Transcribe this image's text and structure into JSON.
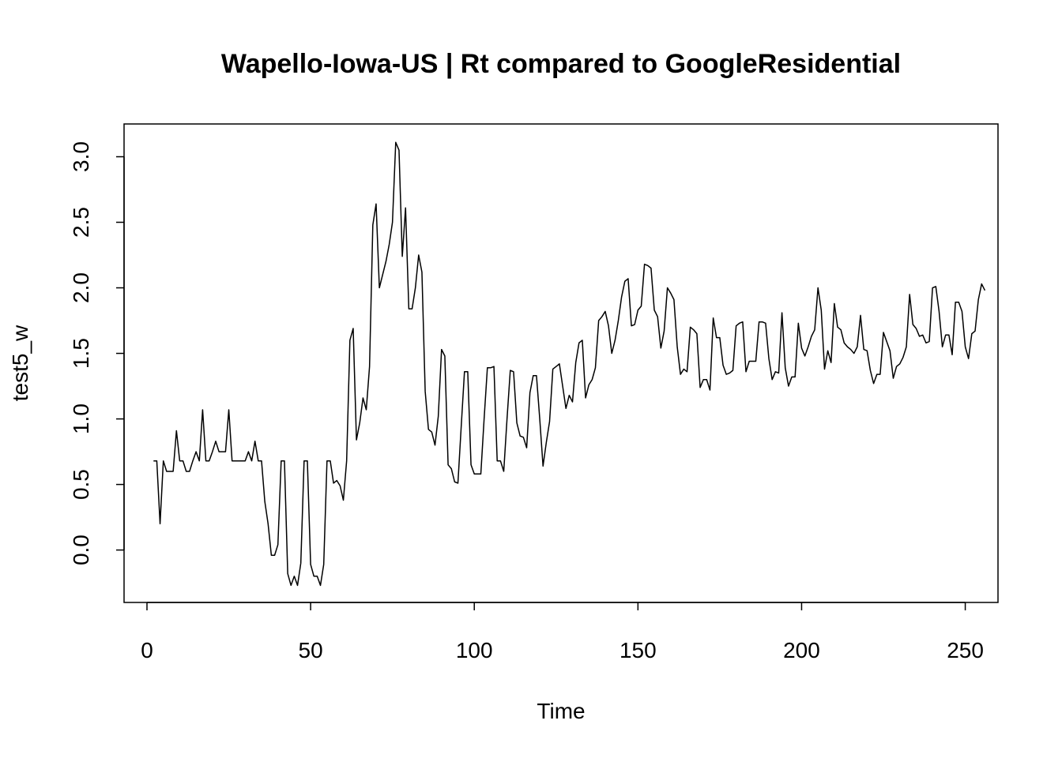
{
  "chart_data": {
    "type": "line",
    "title": "Wapello-Iowa-US | Rt compared to GoogleResidential",
    "xlabel": "Time",
    "ylabel": "test5_w",
    "xlim": [
      -7,
      260
    ],
    "ylim": [
      -0.4,
      3.25
    ],
    "xticks": [
      0,
      50,
      100,
      150,
      200,
      250
    ],
    "yticks": [
      0.0,
      0.5,
      1.0,
      1.5,
      2.0,
      2.5,
      3.0
    ],
    "xtick_labels": [
      "0",
      "50",
      "100",
      "150",
      "200",
      "250"
    ],
    "ytick_labels": [
      "0.0",
      "0.5",
      "1.0",
      "1.5",
      "2.0",
      "2.5",
      "3.0"
    ],
    "grid": false,
    "x_start": 2,
    "series": [
      {
        "name": "test5_w",
        "color": "#000000",
        "values": [
          0.68,
          0.68,
          0.2,
          0.68,
          0.6,
          0.6,
          0.6,
          0.91,
          0.68,
          0.68,
          0.6,
          0.6,
          0.68,
          0.75,
          0.68,
          1.07,
          0.68,
          0.68,
          0.75,
          0.83,
          0.75,
          0.75,
          0.75,
          1.07,
          0.68,
          0.68,
          0.68,
          0.68,
          0.68,
          0.75,
          0.68,
          0.83,
          0.68,
          0.68,
          0.37,
          0.2,
          -0.04,
          -0.04,
          0.04,
          0.68,
          0.68,
          -0.18,
          -0.27,
          -0.2,
          -0.27,
          -0.1,
          0.68,
          0.68,
          -0.11,
          -0.2,
          -0.2,
          -0.27,
          -0.11,
          0.68,
          0.68,
          0.51,
          0.53,
          0.49,
          0.38,
          0.68,
          1.6,
          1.69,
          0.84,
          0.97,
          1.16,
          1.07,
          1.4,
          2.48,
          2.64,
          2.0,
          2.1,
          2.2,
          2.33,
          2.5,
          3.11,
          3.05,
          2.24,
          2.61,
          1.84,
          1.84,
          2.0,
          2.25,
          2.12,
          1.21,
          0.92,
          0.9,
          0.8,
          1.02,
          1.53,
          1.48,
          0.65,
          0.62,
          0.52,
          0.51,
          0.94,
          1.36,
          1.36,
          0.65,
          0.58,
          0.58,
          0.58,
          1.0,
          1.39,
          1.39,
          1.4,
          0.68,
          0.68,
          0.6,
          1.0,
          1.37,
          1.36,
          0.97,
          0.87,
          0.86,
          0.78,
          1.2,
          1.33,
          1.33,
          1.0,
          0.64,
          0.82,
          0.98,
          1.38,
          1.4,
          1.42,
          1.25,
          1.08,
          1.18,
          1.13,
          1.43,
          1.58,
          1.6,
          1.16,
          1.26,
          1.3,
          1.39,
          1.75,
          1.78,
          1.82,
          1.71,
          1.5,
          1.6,
          1.75,
          1.93,
          2.05,
          2.07,
          1.71,
          1.72,
          1.83,
          1.86,
          2.18,
          2.17,
          2.15,
          1.83,
          1.78,
          1.54,
          1.67,
          2.0,
          1.96,
          1.91,
          1.55,
          1.34,
          1.38,
          1.36,
          1.7,
          1.68,
          1.65,
          1.24,
          1.3,
          1.3,
          1.22,
          1.77,
          1.62,
          1.62,
          1.41,
          1.34,
          1.35,
          1.37,
          1.71,
          1.73,
          1.74,
          1.36,
          1.44,
          1.44,
          1.44,
          1.74,
          1.74,
          1.73,
          1.46,
          1.3,
          1.36,
          1.35,
          1.81,
          1.39,
          1.25,
          1.32,
          1.32,
          1.73,
          1.54,
          1.48,
          1.55,
          1.63,
          1.68,
          2.0,
          1.83,
          1.38,
          1.52,
          1.43,
          1.88,
          1.7,
          1.68,
          1.58,
          1.55,
          1.53,
          1.5,
          1.55,
          1.79,
          1.53,
          1.52,
          1.37,
          1.27,
          1.34,
          1.34,
          1.66,
          1.59,
          1.52,
          1.31,
          1.4,
          1.42,
          1.47,
          1.55,
          1.95,
          1.72,
          1.69,
          1.63,
          1.64,
          1.58,
          1.59,
          2.0,
          2.01,
          1.82,
          1.55,
          1.64,
          1.64,
          1.49,
          1.89,
          1.89,
          1.82,
          1.55,
          1.46,
          1.65,
          1.67,
          1.91,
          2.03,
          1.98
        ]
      }
    ]
  }
}
